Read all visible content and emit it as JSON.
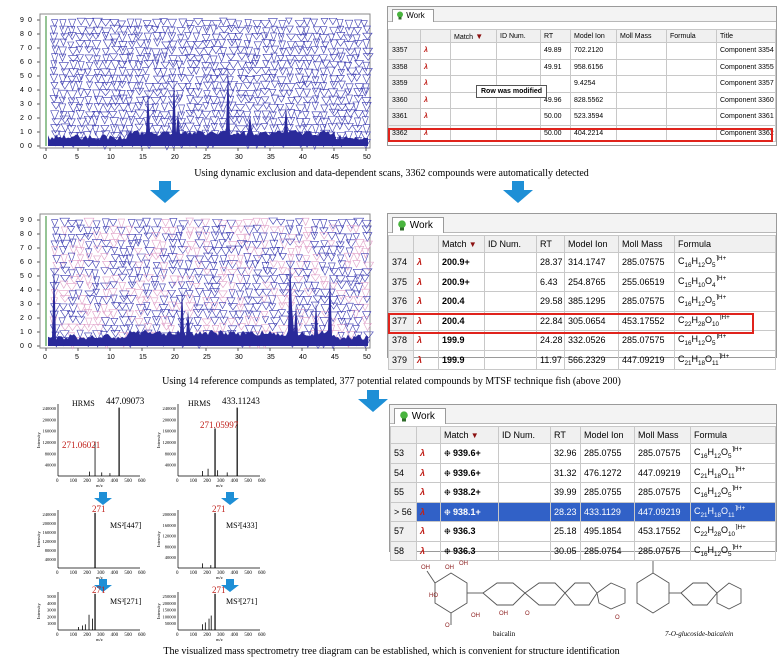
{
  "captions": {
    "c1": "Using dynamic exclusion and data-dependent scans, 3362 compounds were automatically detected",
    "c2": "Using 14 reference compunds as templated, 377 potential related compounds by MTSF technique fish (above 200)",
    "c3": "The visualized mass spectrometry tree diagram can be established, which is convenient for structure identification"
  },
  "plot_axis": {
    "y_ticks": [
      "9",
      "8",
      "7",
      "6",
      "5",
      "4",
      "3",
      "2",
      "1",
      "0"
    ],
    "x_ticks": [
      "0",
      "5",
      "10",
      "15",
      "20",
      "25",
      "30",
      "35",
      "40",
      "45",
      "50"
    ]
  },
  "tab_label": "Work",
  "table1": {
    "headers": [
      "",
      "",
      "Match",
      "ID Num.",
      "RT",
      "Model Ion",
      "Moll Mass",
      "Formula",
      "Title"
    ],
    "rows": [
      [
        "3357",
        "",
        "",
        "",
        "49.89",
        "702.2120",
        "",
        "",
        "Component 3354"
      ],
      [
        "3358",
        "",
        "",
        "",
        "49.91",
        "958.6156",
        "",
        "",
        "Component 3355"
      ],
      [
        "3359",
        "",
        "",
        "",
        "",
        "9.4254",
        "",
        "",
        "Component 3357"
      ],
      [
        "3360",
        "",
        "",
        "",
        "49.96",
        "828.5562",
        "",
        "",
        "Component 3360"
      ],
      [
        "3361",
        "",
        "",
        "",
        "50.00",
        "523.3594",
        "",
        "",
        "Component 3361"
      ],
      [
        "3362",
        "",
        "",
        "",
        "50.00",
        "404.2214",
        "",
        "",
        "Component 3362"
      ]
    ],
    "tooltip": "Row was modified"
  },
  "table2": {
    "headers": [
      "",
      "",
      "Match",
      "ID Num.",
      "RT",
      "Model Ion",
      "Moll Mass",
      "Formula"
    ],
    "rows": [
      [
        "374",
        "",
        "200.9+",
        "",
        "28.37",
        "314.1747",
        "285.07575",
        "C16H12O5"
      ],
      [
        "375",
        "",
        "200.9+",
        "",
        "6.43",
        "254.8765",
        "255.06519",
        "C15H10O4"
      ],
      [
        "376",
        "",
        "200.4",
        "",
        "29.58",
        "385.1295",
        "285.07575",
        "C16H12O5"
      ],
      [
        "377",
        "",
        "200.4",
        "",
        "22.84",
        "305.0654",
        "453.17552",
        "C22H28O10"
      ],
      [
        "378",
        "",
        "199.9",
        "",
        "24.28",
        "332.0526",
        "285.07575",
        "C16H12O5"
      ],
      [
        "379",
        "",
        "199.9",
        "",
        "11.97",
        "566.2329",
        "447.09219",
        "C21H18O11"
      ]
    ]
  },
  "table3": {
    "headers": [
      "",
      "",
      "Match",
      "ID Num.",
      "RT",
      "Model Ion",
      "Moll Mass",
      "Formula"
    ],
    "rows": [
      [
        "53",
        "",
        "939.6+",
        "",
        "32.96",
        "285.0755",
        "285.07575",
        "C16H12O5"
      ],
      [
        "54",
        "",
        "939.6+",
        "",
        "31.32",
        "476.1272",
        "447.09219",
        "C21H18O11"
      ],
      [
        "55",
        "",
        "938.2+",
        "",
        "39.99",
        "285.0755",
        "285.07575",
        "C16H12O5"
      ],
      [
        "> 56",
        "",
        "938.1+",
        "",
        "28.23",
        "433.1129",
        "447.09219",
        "C21H18O11"
      ],
      [
        "57",
        "",
        "936.3",
        "",
        "25.18",
        "495.1854",
        "453.17552",
        "C22H28O10"
      ],
      [
        "58",
        "",
        "936.3",
        "",
        "30.05",
        "285.0754",
        "285.07575",
        "C16H12O5"
      ]
    ]
  },
  "ms": {
    "hrms_label": "HRMS",
    "intensity": "Intensity",
    "mz": "m/z",
    "left": {
      "peak_main": "447.09073",
      "peak_frag": "271.06021",
      "ms2": "MS²[447]",
      "ms2_peak": "271",
      "ms3": "MS³[271]",
      "ms3_peak": "271",
      "y_ticks_1": [
        "240000",
        "200000",
        "160000",
        "120000",
        "80000",
        "40000"
      ],
      "y_ticks_2": [
        "240000",
        "200000",
        "160000",
        "120000",
        "80000",
        "40000"
      ],
      "y_ticks_3": [
        "5000",
        "4000",
        "3000",
        "2000",
        "1000"
      ]
    },
    "right": {
      "peak_main": "433.11243",
      "peak_frag": "271.05997",
      "ms2": "MS²[433]",
      "ms2_peak": "271",
      "ms3": "MS³[271]",
      "ms3_peak": "271",
      "y_ticks_1": [
        "240000",
        "200000",
        "160000",
        "120000",
        "80000",
        "40000"
      ],
      "y_ticks_2": [
        "200000",
        "160000",
        "120000",
        "80000",
        "40000"
      ],
      "y_ticks_3": [
        "250000",
        "200000",
        "150000",
        "100000",
        "50000"
      ]
    },
    "x_ticks": [
      "0",
      "100",
      "200",
      "300",
      "400",
      "500",
      "600"
    ]
  },
  "structures": {
    "left_name": "baicalin",
    "right_name": "7-O-glucoside-baicalein",
    "labels": [
      "OH",
      "O",
      "HO",
      "OH",
      "OH",
      "OH",
      "O",
      "OH",
      "O"
    ]
  },
  "colors": {
    "accent_red": "#e0231c",
    "arrow_blue": "#1e8fd6",
    "selection": "#3161c7",
    "plot_fill": "#2a2a9a",
    "plot_pink": "#e8a0c8"
  }
}
